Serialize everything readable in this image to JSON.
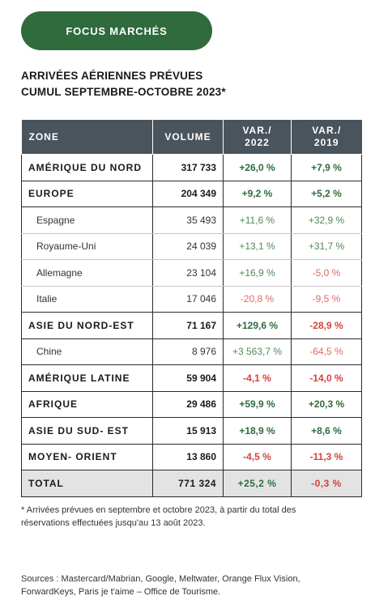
{
  "badge": "FOCUS MARCHÉS",
  "title_line1": "ARRIVÉES AÉRIENNES PRÉVUES",
  "title_line2": "CUMUL SEPTEMBRE-OCTOBRE 2023*",
  "headers": {
    "zone": "ZONE",
    "volume": "VOLUME",
    "var2022_l1": "VAR./",
    "var2022_l2": "2022",
    "var2019_l1": "VAR./",
    "var2019_l2": "2019"
  },
  "rows": [
    {
      "zone": "AMÉRIQUE DU NORD",
      "volume": "317 733",
      "var2022": "+26,0 %",
      "var2019": "+7,9 %"
    },
    {
      "zone": "EUROPE",
      "volume": "204 349",
      "var2022": "+9,2 %",
      "var2019": "+5,2 %"
    },
    {
      "zone": "Espagne",
      "volume": "35 493",
      "var2022": "+11,6 %",
      "var2019": "+32,9 %"
    },
    {
      "zone": "Royaume-Uni",
      "volume": "24 039",
      "var2022": "+13,1 %",
      "var2019": "+31,7 %"
    },
    {
      "zone": "Allemagne",
      "volume": "23 104",
      "var2022": "+16,9 %",
      "var2019": "-5,0 %"
    },
    {
      "zone": "Italie",
      "volume": "17 046",
      "var2022": "-20,8 %",
      "var2019": "-9,5 %"
    },
    {
      "zone": "ASIE DU NORD-EST",
      "volume": "71 167",
      "var2022": "+129,6 %",
      "var2019": "-28,9 %"
    },
    {
      "zone": "Chine",
      "volume": "8 976",
      "var2022": "+3 563,7 %",
      "var2019": "-64,5 %"
    },
    {
      "zone": "AMÉRIQUE LATINE",
      "volume": "59 904",
      "var2022": "-4,1 %",
      "var2019": "-14,0 %"
    },
    {
      "zone": "AFRIQUE",
      "volume": "29 486",
      "var2022": "+59,9 %",
      "var2019": "+20,3 %"
    },
    {
      "zone": "ASIE DU SUD- EST",
      "volume": "15 913",
      "var2022": "+18,9 %",
      "var2019": "+8,6 %"
    },
    {
      "zone": "MOYEN- ORIENT",
      "volume": "13 860",
      "var2022": "-4,5 %",
      "var2019": "-11,3 %"
    },
    {
      "zone": "TOTAL",
      "volume": "771 324",
      "var2022": "+25,2 %",
      "var2019": "-0,3 %"
    }
  ],
  "colors": {
    "badge": "#2f6b3c",
    "header": "#4a545c",
    "positive": "#2f6b3c",
    "negative": "#d3433a",
    "total_bg": "#e3e3e3"
  },
  "note_line1": "* Arrivées prévues en septembre et octobre 2023, à partir du total des",
  "note_line2": "réservations effectuées jusqu'au 13 août 2023.",
  "sources_line1": "Sources : Mastercard/Mabrian, Google, Meltwater, Orange Flux Vision,",
  "sources_line2": "ForwardKeys, Paris je t'aime – Office de Tourisme."
}
